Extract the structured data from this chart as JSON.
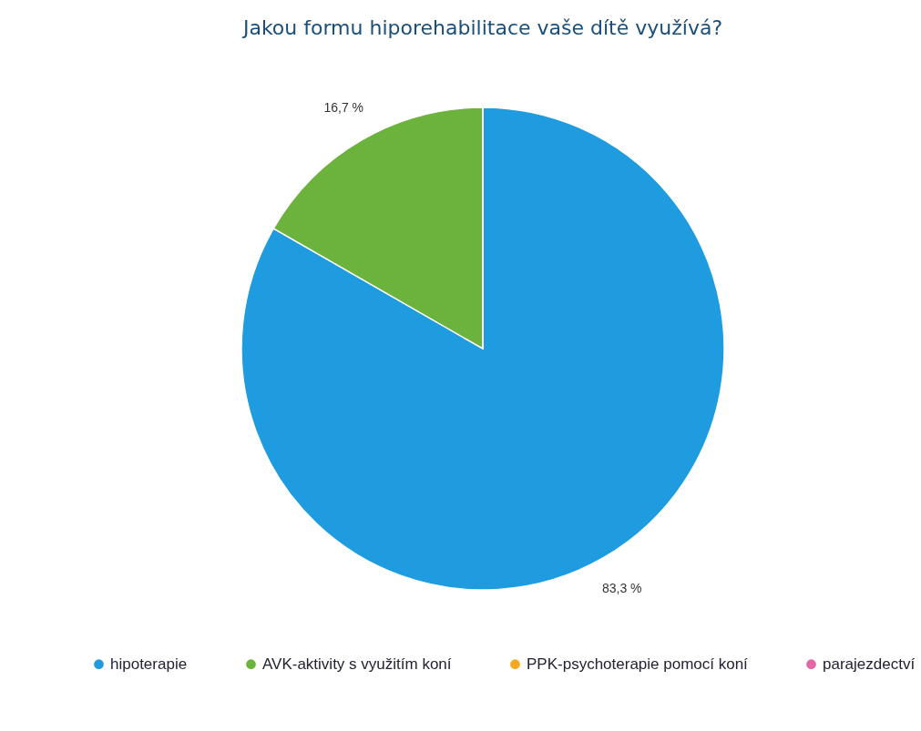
{
  "chart_data": {
    "type": "pie",
    "title": "Jakou formu hiporehabilitace vaše dítě využívá?",
    "categories": [
      "hipoterapie",
      "AVK-aktivity s využitím koní",
      "PPK-psychoterapie pomocí koní",
      "parajezdectví"
    ],
    "values": [
      83.3,
      16.7,
      0,
      0
    ],
    "colors": [
      "#1f9ce0",
      "#6cb33e",
      "#f7a823",
      "#e565a6"
    ],
    "value_labels": [
      "83,3 %",
      "16,7 %",
      null,
      null
    ],
    "legend": "bottom"
  }
}
